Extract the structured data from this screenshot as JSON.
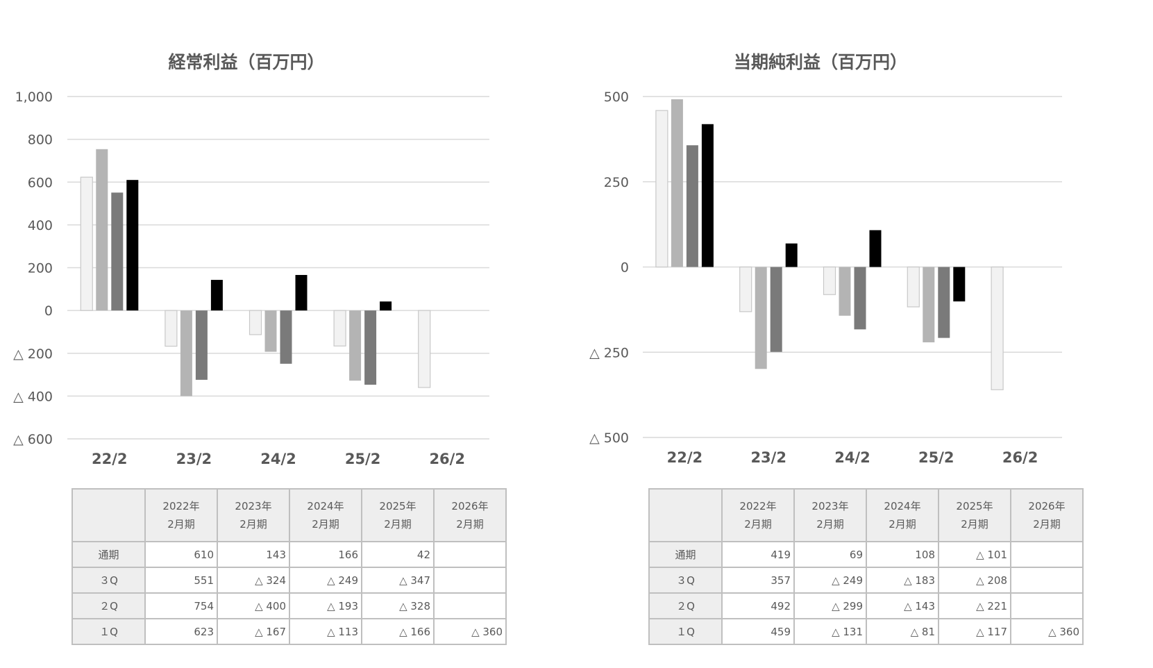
{
  "charts": [
    {
      "id": "ordinary",
      "table": {
        "corner": "",
        "columns": [
          {
            "year": "2022年",
            "period": "2月期"
          },
          {
            "year": "2023年",
            "period": "2月期"
          },
          {
            "year": "2024年",
            "period": "2月期"
          },
          {
            "year": "2025年",
            "period": "2月期"
          },
          {
            "year": "2026年",
            "period": "2月期"
          }
        ],
        "rows": [
          {
            "label": "通期",
            "values": [
              "610",
              "143",
              "166",
              "42",
              ""
            ]
          },
          {
            "label": "３Q",
            "values": [
              "551",
              "△ 324",
              "△ 249",
              "△ 347",
              ""
            ]
          },
          {
            "label": "２Q",
            "values": [
              "754",
              "△ 400",
              "△ 193",
              "△ 328",
              ""
            ]
          },
          {
            "label": "１Q",
            "values": [
              "623",
              "△ 167",
              "△ 113",
              "△ 166",
              "△ 360"
            ]
          }
        ]
      }
    },
    {
      "id": "net",
      "table": {
        "corner": "",
        "columns": [
          {
            "year": "2022年",
            "period": "2月期"
          },
          {
            "year": "2023年",
            "period": "2月期"
          },
          {
            "year": "2024年",
            "period": "2月期"
          },
          {
            "year": "2025年",
            "period": "2月期"
          },
          {
            "year": "2026年",
            "period": "2月期"
          }
        ],
        "rows": [
          {
            "label": "通期",
            "values": [
              "419",
              "69",
              "108",
              "△ 101",
              ""
            ]
          },
          {
            "label": "３Q",
            "values": [
              "357",
              "△ 249",
              "△ 183",
              "△ 208",
              ""
            ]
          },
          {
            "label": "２Q",
            "values": [
              "492",
              "△ 299",
              "△ 143",
              "△ 221",
              ""
            ]
          },
          {
            "label": "１Q",
            "values": [
              "459",
              "△ 131",
              "△ 81",
              "△ 117",
              "△ 360"
            ]
          }
        ]
      }
    }
  ],
  "chart_data": [
    {
      "type": "bar",
      "title": "経常利益（百万円）",
      "xlabel": "",
      "ylabel": "",
      "categories": [
        "22/2",
        "23/2",
        "24/2",
        "25/2",
        "26/2"
      ],
      "ylim": [
        -600,
        1000
      ],
      "yticks": [
        1000,
        800,
        600,
        400,
        200,
        0,
        -200,
        -400,
        -600
      ],
      "ytick_labels": [
        "1,000",
        "800",
        "600",
        "400",
        "200",
        "0",
        "△ 200",
        "△ 400",
        "△ 600"
      ],
      "grid": true,
      "legend": "none",
      "series": [
        {
          "values": [
            623,
            -167,
            -113,
            -166,
            -360
          ],
          "color": "#f2f2f2"
        },
        {
          "values": [
            754,
            -400,
            -193,
            -328,
            null
          ],
          "color": "#b4b4b4"
        },
        {
          "values": [
            551,
            -324,
            -249,
            -347,
            null
          ],
          "color": "#7a7a7a"
        },
        {
          "values": [
            610,
            143,
            166,
            42,
            null
          ],
          "color": "#000000"
        }
      ]
    },
    {
      "type": "bar",
      "title": "当期純利益（百万円）",
      "xlabel": "",
      "ylabel": "",
      "categories": [
        "22/2",
        "23/2",
        "24/2",
        "25/2",
        "26/2"
      ],
      "ylim": [
        -500,
        500
      ],
      "yticks": [
        500,
        250,
        0,
        -250,
        -500
      ],
      "ytick_labels": [
        "500",
        "250",
        "0",
        "△ 250",
        "△ 500"
      ],
      "grid": true,
      "legend": "none",
      "series": [
        {
          "values": [
            459,
            -131,
            -81,
            -117,
            -360
          ],
          "color": "#f2f2f2"
        },
        {
          "values": [
            492,
            -299,
            -143,
            -221,
            null
          ],
          "color": "#b4b4b4"
        },
        {
          "values": [
            357,
            -249,
            -183,
            -208,
            null
          ],
          "color": "#7a7a7a"
        },
        {
          "values": [
            419,
            69,
            108,
            -101,
            null
          ],
          "color": "#000000"
        }
      ]
    }
  ]
}
